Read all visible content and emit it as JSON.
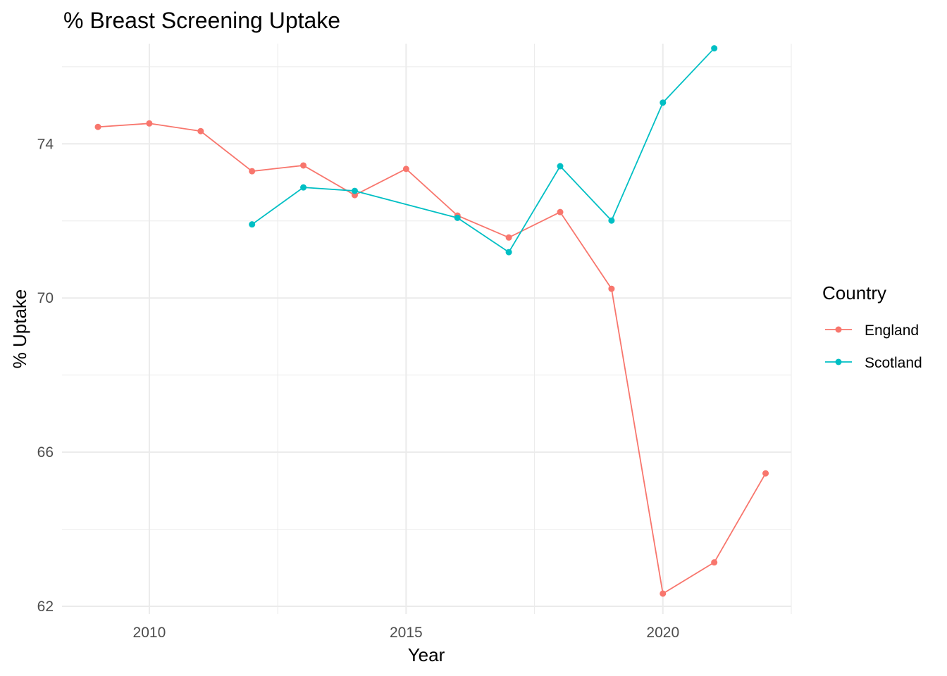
{
  "chart_data": {
    "type": "line",
    "title": "% Breast Screening Uptake",
    "xlabel": "Year",
    "ylabel": "% Uptake",
    "xlim": [
      2008.3,
      2022.5
    ],
    "ylim": [
      61.8,
      76.6
    ],
    "x_ticks": [
      2010,
      2015,
      2020
    ],
    "x_minor_ticks": [
      2007.5,
      2012.5,
      2017.5,
      2022.5
    ],
    "y_ticks": [
      62,
      66,
      70,
      74
    ],
    "y_minor_ticks": [
      64,
      68,
      72,
      76
    ],
    "grid": true,
    "legend": {
      "title": "Country",
      "position": "right"
    },
    "series": [
      {
        "name": "England",
        "color": "#F8766D",
        "x": [
          2009,
          2010,
          2011,
          2012,
          2013,
          2014,
          2015,
          2016,
          2017,
          2018,
          2019,
          2020,
          2021,
          2022
        ],
        "y": [
          74.44,
          74.53,
          74.33,
          73.29,
          73.44,
          72.67,
          73.35,
          72.14,
          71.57,
          72.23,
          70.24,
          62.33,
          63.14,
          65.45
        ]
      },
      {
        "name": "Scotland",
        "color": "#00BFC4",
        "x": [
          2012,
          2013,
          2014,
          2016,
          2017,
          2018,
          2019,
          2020,
          2021
        ],
        "y": [
          71.91,
          72.87,
          72.78,
          72.08,
          71.19,
          73.42,
          72.01,
          75.07,
          76.48
        ]
      }
    ]
  }
}
